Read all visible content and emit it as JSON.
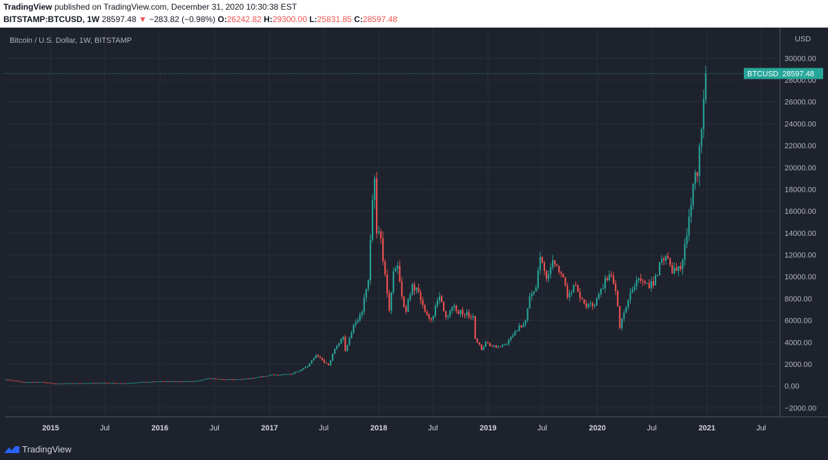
{
  "header": {
    "brand": "TradingView",
    "published": "published on TradingView.com, December 31, 2020 10:30:38 EST",
    "symbol": "BITSTAMP:BTCUSD, 1W",
    "last": "28597.48",
    "change_arrow": "▼",
    "change": "−283.82 (−0.98%)",
    "o_label": "O:",
    "o_value": "26242.82",
    "h_label": "H:",
    "h_value": "29300.00",
    "l_label": "L:",
    "l_value": "25831.85",
    "c_label": "C:",
    "c_value": "28597.48"
  },
  "footer": {
    "brand": "TradingView"
  },
  "colors": {
    "background": "#1e222d",
    "up": "#26a69a",
    "down": "#ef5350",
    "grid": "#2a2e39",
    "text": "#b2b5be"
  },
  "chart_data": {
    "type": "candlestick",
    "title": "Bitcoin / U.S. Dollar, 1W, BITSTAMP",
    "currency_label": "USD",
    "price_label": {
      "name": "BTCUSD",
      "value": "28597.48"
    },
    "ylim": [
      -2800,
      32800
    ],
    "y_ticks": [
      30000,
      28000,
      26000,
      24000,
      22000,
      20000,
      18000,
      16000,
      14000,
      12000,
      10000,
      8000,
      6000,
      4000,
      2000,
      0,
      -2000
    ],
    "y_tick_labels": [
      "30000.00",
      "28000.00",
      "26000.00",
      "24000.00",
      "22000.00",
      "20000.00",
      "18000.00",
      "16000.00",
      "14000.00",
      "12000.00",
      "10000.00",
      "8000.00",
      "6000.00",
      "4000.00",
      "2000.00",
      "0.00",
      "−2000.00"
    ],
    "x_range": [
      "2014-08-01",
      "2021-09-01"
    ],
    "x_ticks": [
      {
        "label": "2015",
        "date": "2015-01-01"
      },
      {
        "label": "Jul",
        "date": "2015-07-01"
      },
      {
        "label": "2016",
        "date": "2016-01-01"
      },
      {
        "label": "Jul",
        "date": "2016-07-01"
      },
      {
        "label": "2017",
        "date": "2017-01-01"
      },
      {
        "label": "Jul",
        "date": "2017-07-01"
      },
      {
        "label": "2018",
        "date": "2018-01-01"
      },
      {
        "label": "Jul",
        "date": "2018-07-01"
      },
      {
        "label": "2019",
        "date": "2019-01-01"
      },
      {
        "label": "Jul",
        "date": "2019-07-01"
      },
      {
        "label": "2020",
        "date": "2020-01-01"
      },
      {
        "label": "Jul",
        "date": "2020-07-01"
      },
      {
        "label": "2021",
        "date": "2021-01-01"
      },
      {
        "label": "Jul",
        "date": "2021-07-01"
      }
    ],
    "series": [
      {
        "interval": "1W",
        "anchor_points": [
          [
            "2014-08-04",
            590
          ],
          [
            "2014-10-06",
            330
          ],
          [
            "2014-12-01",
            370
          ],
          [
            "2015-01-12",
            210
          ],
          [
            "2015-04-06",
            250
          ],
          [
            "2015-07-06",
            280
          ],
          [
            "2015-09-07",
            235
          ],
          [
            "2015-11-02",
            360
          ],
          [
            "2016-01-04",
            430
          ],
          [
            "2016-03-07",
            410
          ],
          [
            "2016-05-02",
            450
          ],
          [
            "2016-06-13",
            700
          ],
          [
            "2016-08-01",
            580
          ],
          [
            "2016-10-03",
            610
          ],
          [
            "2016-12-19",
            900
          ],
          [
            "2017-01-02",
            1000
          ],
          [
            "2017-03-13",
            1050
          ],
          [
            "2017-05-08",
            1800
          ],
          [
            "2017-06-05",
            2800
          ],
          [
            "2017-07-17",
            1900
          ],
          [
            "2017-08-07",
            3400
          ],
          [
            "2017-09-04",
            4500
          ],
          [
            "2017-09-11",
            3200
          ],
          [
            "2017-10-09",
            5600
          ],
          [
            "2017-11-06",
            6800
          ],
          [
            "2017-11-27",
            9700
          ],
          [
            "2017-12-11",
            17000
          ],
          [
            "2017-12-18",
            19000
          ],
          [
            "2017-12-25",
            14000
          ],
          [
            "2018-01-08",
            13500
          ],
          [
            "2018-01-15",
            11400
          ],
          [
            "2018-01-29",
            8500
          ],
          [
            "2018-02-05",
            6900
          ],
          [
            "2018-02-19",
            10500
          ],
          [
            "2018-03-05",
            11000
          ],
          [
            "2018-03-19",
            8200
          ],
          [
            "2018-04-02",
            6800
          ],
          [
            "2018-04-23",
            9300
          ],
          [
            "2018-05-07",
            9000
          ],
          [
            "2018-05-28",
            7400
          ],
          [
            "2018-06-25",
            6100
          ],
          [
            "2018-07-23",
            8200
          ],
          [
            "2018-08-13",
            6300
          ],
          [
            "2018-09-03",
            7200
          ],
          [
            "2018-10-15",
            6500
          ],
          [
            "2018-11-12",
            6400
          ],
          [
            "2018-11-19",
            4300
          ],
          [
            "2018-12-10",
            3300
          ],
          [
            "2018-12-24",
            4000
          ],
          [
            "2019-01-14",
            3600
          ],
          [
            "2019-02-11",
            3600
          ],
          [
            "2019-03-04",
            3850
          ],
          [
            "2019-04-01",
            5000
          ],
          [
            "2019-05-06",
            6000
          ],
          [
            "2019-05-20",
            8200
          ],
          [
            "2019-06-10",
            9000
          ],
          [
            "2019-06-24",
            11800
          ],
          [
            "2019-07-15",
            9800
          ],
          [
            "2019-08-05",
            11500
          ],
          [
            "2019-09-02",
            10300
          ],
          [
            "2019-09-23",
            8100
          ],
          [
            "2019-10-21",
            9200
          ],
          [
            "2019-11-25",
            7200
          ],
          [
            "2019-12-16",
            7300
          ],
          [
            "2020-01-13",
            8900
          ],
          [
            "2020-02-10",
            10200
          ],
          [
            "2020-03-02",
            8700
          ],
          [
            "2020-03-16",
            5300
          ],
          [
            "2020-03-30",
            6700
          ],
          [
            "2020-04-27",
            8800
          ],
          [
            "2020-05-11",
            9700
          ],
          [
            "2020-06-08",
            9400
          ],
          [
            "2020-07-06",
            9200
          ],
          [
            "2020-07-27",
            11300
          ],
          [
            "2020-08-17",
            11900
          ],
          [
            "2020-09-07",
            10300
          ],
          [
            "2020-10-05",
            10700
          ],
          [
            "2020-10-19",
            13000
          ],
          [
            "2020-11-02",
            15500
          ],
          [
            "2020-11-16",
            18500
          ],
          [
            "2020-11-30",
            19200
          ],
          [
            "2020-12-14",
            23500
          ],
          [
            "2020-12-21",
            26300
          ],
          [
            "2020-12-28",
            28597.48
          ]
        ],
        "last_candle": {
          "open": 26242.82,
          "high": 29300.0,
          "low": 25831.85,
          "close": 28597.48
        }
      }
    ]
  }
}
